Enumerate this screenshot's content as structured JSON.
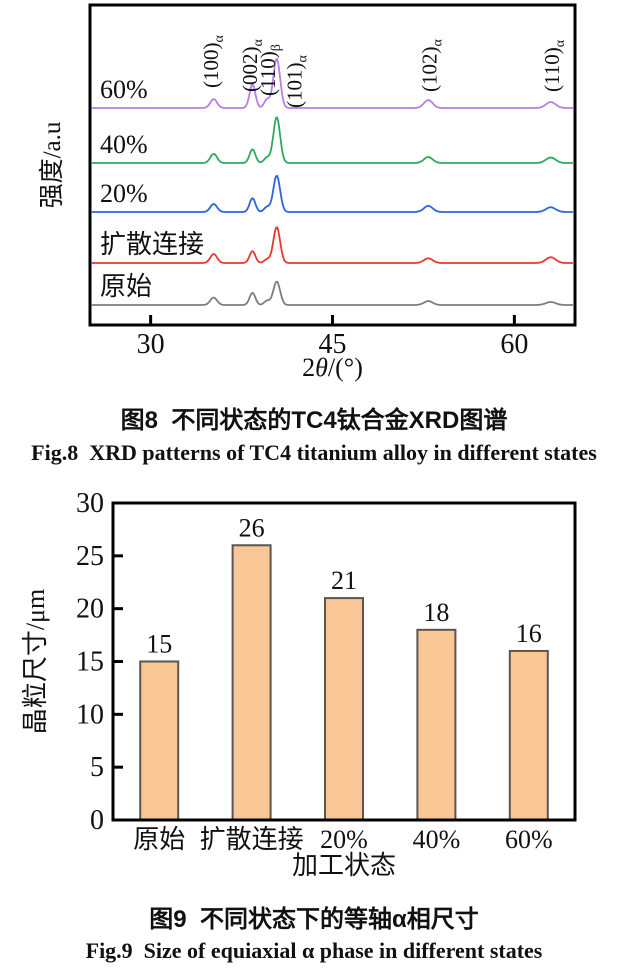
{
  "figure8": {
    "caption_zh": "图8  不同状态的TC4钛合金XRD图谱",
    "caption_en": "Fig.8  XRD patterns of TC4 titanium alloy in different states"
  },
  "figure9": {
    "caption_zh": "图9  不同状态下的等轴α相尺寸",
    "caption_en": "Fig.9  Size of equiaxial α phase in different states"
  },
  "chart_data": [
    {
      "id": "xrd",
      "type": "line",
      "title": "XRD patterns of TC4 titanium alloy in different states",
      "xlabel": "2θ/(°)",
      "ylabel": "强度/a.u",
      "xlim": [
        25,
        65
      ],
      "xticks": [
        30,
        45,
        60
      ],
      "grid": false,
      "peak_two_theta": [
        35.2,
        38.4,
        39.6,
        40.4,
        52.9,
        63.0
      ],
      "peak_sigma": [
        0.28,
        0.24,
        0.24,
        0.28,
        0.36,
        0.4
      ],
      "peak_labels": [
        {
          "hkl": "(100)",
          "phase": "α",
          "two_theta": 35.2,
          "label_x_deg": 34.9
        },
        {
          "hkl": "(002)",
          "phase": "α",
          "two_theta": 38.4,
          "label_x_deg": 38.1
        },
        {
          "hkl": "(110)",
          "phase": "β",
          "two_theta": 39.6,
          "label_x_deg": 39.6
        },
        {
          "hkl": "(101)",
          "phase": "α",
          "two_theta": 40.4,
          "label_x_deg": 41.8
        },
        {
          "hkl": "(102)",
          "phase": "α",
          "two_theta": 52.9,
          "label_x_deg": 52.9
        },
        {
          "hkl": "(110)",
          "phase": "α",
          "two_theta": 63.0,
          "label_x_deg": 63.0
        }
      ],
      "series": [
        {
          "name": "60%",
          "color": "#b67ee6",
          "intensity": 0.95,
          "peak_rel": [
            0.18,
            0.48,
            0.17,
            1.0,
            0.16,
            0.12
          ]
        },
        {
          "name": "40%",
          "color": "#2fa85c",
          "intensity": 0.88,
          "peak_rel": [
            0.2,
            0.3,
            0.12,
            1.0,
            0.13,
            0.12
          ]
        },
        {
          "name": "20%",
          "color": "#2a65dd",
          "intensity": 0.7,
          "peak_rel": [
            0.22,
            0.38,
            0.14,
            1.0,
            0.17,
            0.13
          ]
        },
        {
          "name": "扩散连接",
          "color": "#e8372c",
          "intensity": 0.69,
          "peak_rel": [
            0.25,
            0.33,
            0.1,
            1.0,
            0.13,
            0.16
          ]
        },
        {
          "name": "原始",
          "color": "#7d7d7d",
          "intensity": 0.45,
          "peak_rel": [
            0.32,
            0.52,
            0.18,
            1.0,
            0.17,
            0.13
          ]
        }
      ]
    },
    {
      "id": "grain-size",
      "type": "bar",
      "categories": [
        "原始",
        "扩散连接",
        "20%",
        "40%",
        "60%"
      ],
      "values": [
        15,
        26,
        21,
        18,
        16
      ],
      "xlabel": "加工状态",
      "ylabel": "晶粒尺寸/μm",
      "ylim": [
        0,
        30
      ],
      "yticks": [
        0,
        5,
        10,
        15,
        20,
        25,
        30
      ],
      "grid": false,
      "bar_fill": "#f9c795",
      "bar_border": "#5a564f"
    }
  ]
}
